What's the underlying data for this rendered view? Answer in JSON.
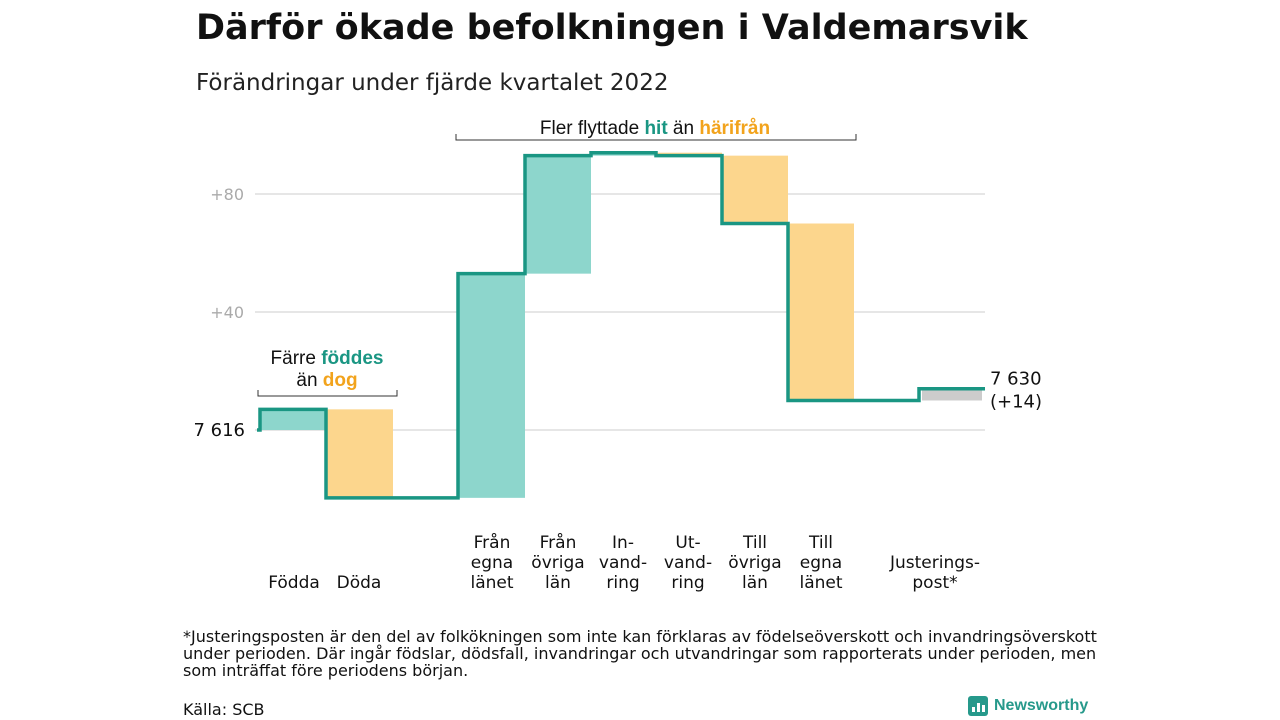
{
  "title": "Därför ökade befolkningen i Valdemarsvik",
  "subtitle": "Förändringar under fjärde kvartalet 2022",
  "chart_data": {
    "type": "bar",
    "subtype": "waterfall",
    "start_value": 7616,
    "start_label": "7 616",
    "end_label": "7 630",
    "end_change_label": "(+14)",
    "y_ticks": [
      "+80",
      "+40"
    ],
    "y_tick_values": [
      80,
      40
    ],
    "y_range": [
      -30,
      95
    ],
    "categories": [
      {
        "lines": [
          "Födda"
        ],
        "change": 7,
        "kind": "in"
      },
      {
        "lines": [
          "Döda"
        ],
        "change": -30,
        "kind": "out"
      },
      {
        "lines": [
          "Från",
          "egna",
          "länet"
        ],
        "change": 76,
        "kind": "in"
      },
      {
        "lines": [
          "Från",
          "övriga",
          "län"
        ],
        "change": 40,
        "kind": "in"
      },
      {
        "lines": [
          "In-",
          "vand-",
          "ring"
        ],
        "change": 1,
        "kind": "in"
      },
      {
        "lines": [
          "Ut-",
          "vand-",
          "ring"
        ],
        "change": -1,
        "kind": "out"
      },
      {
        "lines": [
          "Till",
          "övriga",
          "län"
        ],
        "change": -23,
        "kind": "out"
      },
      {
        "lines": [
          "Till",
          "egna",
          "länet"
        ],
        "change": -60,
        "kind": "out"
      },
      {
        "lines": [
          "Justerings-",
          "post*"
        ],
        "change": 4,
        "kind": "adjust"
      }
    ],
    "annotations": [
      {
        "parts": [
          "Färre ",
          "föddes"
        ],
        "line2": [
          "än ",
          "dog"
        ],
        "spans": [
          0,
          1
        ]
      },
      {
        "parts": [
          "Fler flyttade ",
          "hit",
          " än ",
          "härifrån"
        ],
        "spans": [
          2,
          7
        ]
      }
    ],
    "colors": {
      "line": "#1a9683",
      "in": "#8dd6cc",
      "out": "#fcd68d",
      "adjust": "#cccccc",
      "accent_in": "#1a9683",
      "accent_out": "#f2a31c",
      "grid": "#dddddd",
      "tick": "#aaaaaa"
    }
  },
  "footnote": "*Justeringsposten är den del av folkökningen som inte kan förklaras av födelseöverskott och invandringsöverskott under perioden. Där ingår födslar, dödsfall, invandringar och utvandringar som rapporterats under perioden, men som inträffat före periodens början.",
  "source": "Källa: SCB",
  "brand": {
    "name": "Newsworthy",
    "icon": "bar-chart-logo-icon"
  }
}
